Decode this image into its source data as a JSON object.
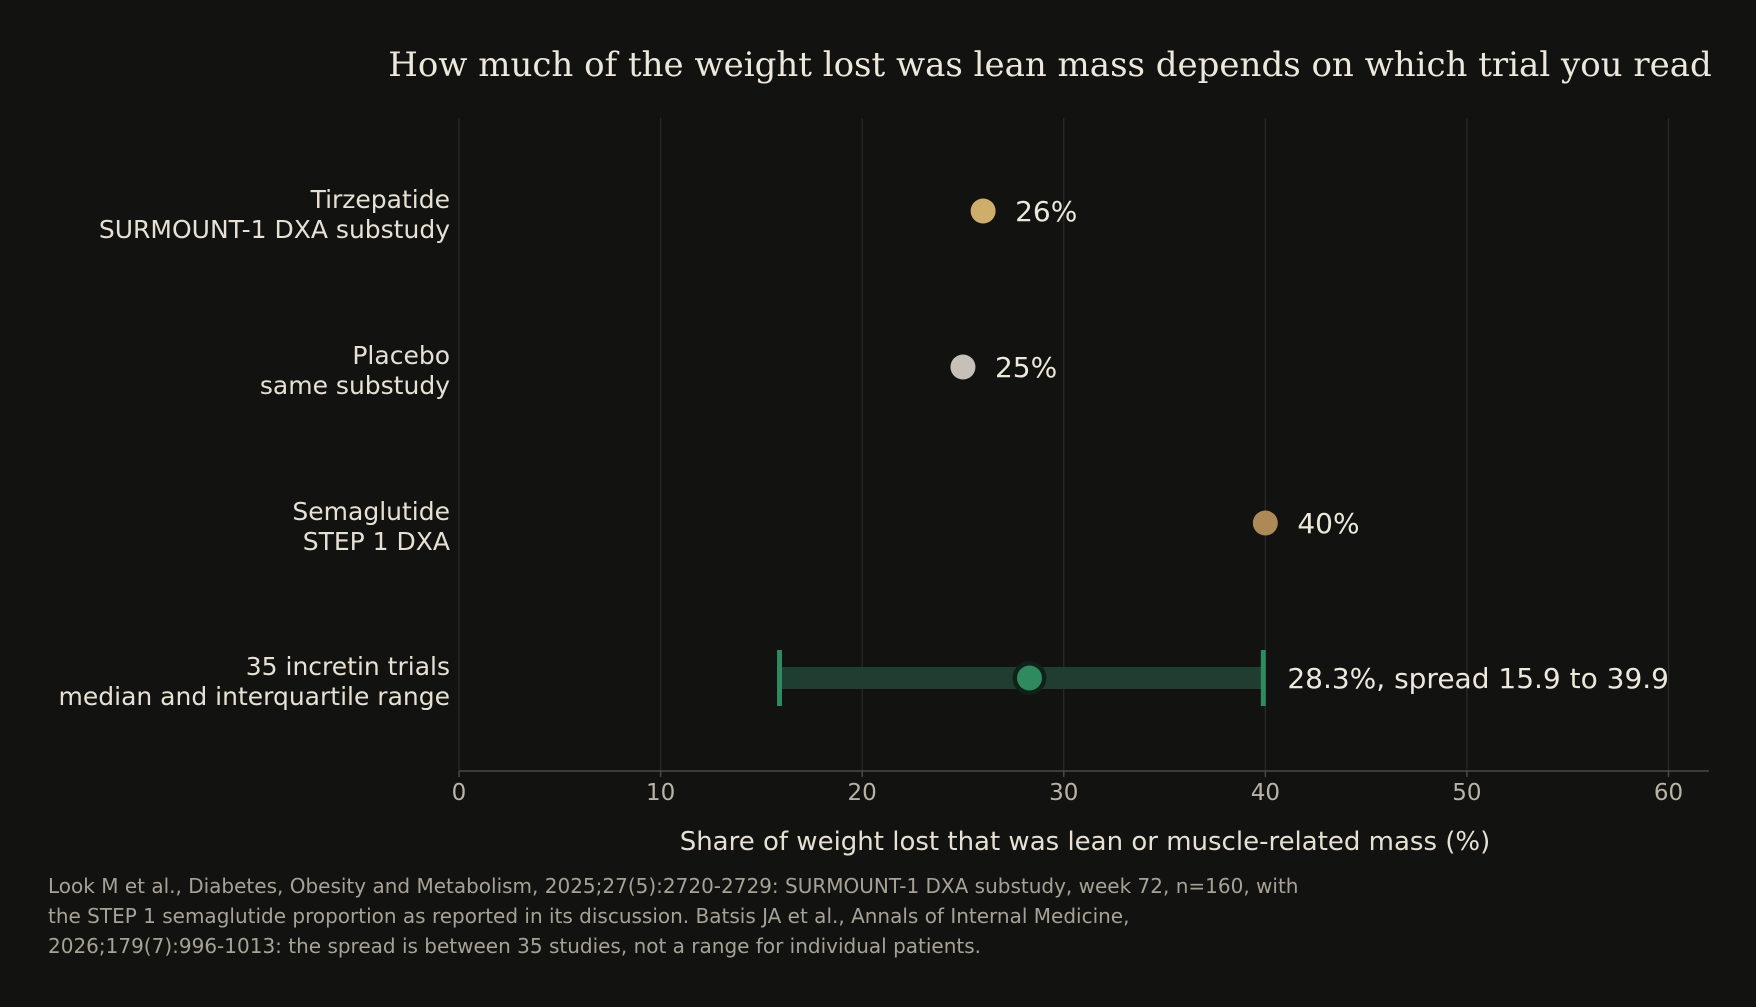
{
  "chart_data": {
    "type": "scatter",
    "title": "How much of the weight lost was lean mass depends on which trial you read",
    "xlabel": "Share of weight lost that was lean or muscle-related mass (%)",
    "ylabel": "",
    "xlim": [
      0,
      62
    ],
    "xticks": [
      0,
      10,
      20,
      30,
      40,
      50,
      60
    ],
    "grid": "vertical",
    "rows": [
      {
        "label_lines": [
          "Tirzepatide",
          "SURMOUNT-1 DXA substudy"
        ],
        "value": 26,
        "value_label": "26%",
        "color": "#cfae6c"
      },
      {
        "label_lines": [
          "Placebo",
          "same substudy"
        ],
        "value": 25,
        "value_label": "25%",
        "color": "#c5c1b7"
      },
      {
        "label_lines": [
          "Semaglutide",
          "STEP 1 DXA"
        ],
        "value": 40,
        "value_label": "40%",
        "color": "#ad8a55"
      },
      {
        "label_lines": [
          "35 incretin trials",
          "median and interquartile range"
        ],
        "value": 28.3,
        "range": [
          15.9,
          39.9
        ],
        "value_label": "28.3%, spread 15.9 to 39.9",
        "color": "#2f8a5f",
        "range_color": "#1f3d30"
      }
    ],
    "source_lines": [
      "Look M et al., Diabetes, Obesity and Metabolism, 2025;27(5):2720-2729: SURMOUNT-1 DXA substudy, week 72, n=160, with",
      "the STEP 1 semaglutide proportion as reported in its discussion. Batsis JA et al., Annals of Internal Medicine,",
      "2026;179(7):996-1013: the spread is between 35 studies, not a range for individual patients."
    ]
  }
}
